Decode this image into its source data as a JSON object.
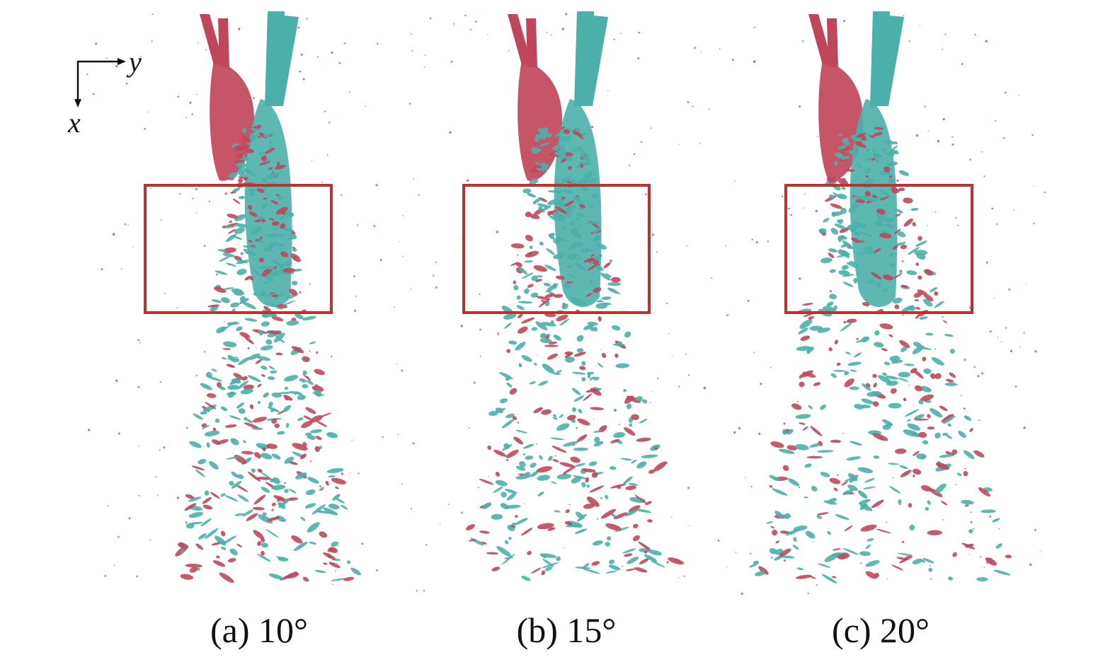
{
  "figure": {
    "axes_indicator": {
      "horizontal_label": "y",
      "vertical_label": "x"
    },
    "panels": [
      {
        "caption": "(a) 10°",
        "angle_deg": 10
      },
      {
        "caption": "(b) 15°",
        "angle_deg": 15
      },
      {
        "caption": "(c) 20°",
        "angle_deg": 20
      }
    ],
    "colors": {
      "jet_a": "#c0475a",
      "jet_b": "#4bb0aa",
      "highlight_box": "#c0302f",
      "background": "#ffffff"
    }
  }
}
